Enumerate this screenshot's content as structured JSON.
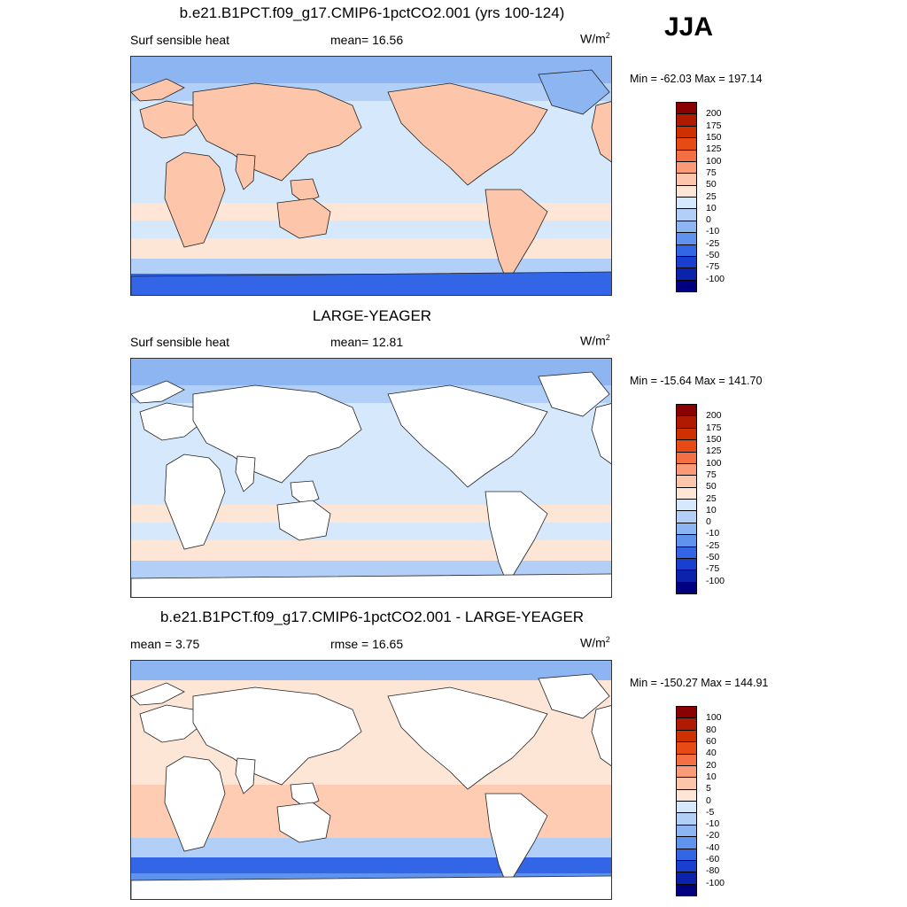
{
  "season": "JJA",
  "panels": [
    {
      "title": "b.e21.B1PCT.f09_g17.CMIP6-1pctCO2.001 (yrs 100-124)",
      "left_label": "Surf sensible heat",
      "mid_label": "mean=  16.56",
      "unit": "W/m",
      "unit_exp": "2",
      "minmax": "Min = -62.03 Max = 197.14",
      "land": "filled",
      "colorbar": {
        "ticks": [
          "200",
          "175",
          "150",
          "125",
          "100",
          "75",
          "50",
          "25",
          "10",
          "0",
          "-10",
          "-25",
          "-50",
          "-75",
          "-100"
        ],
        "colors": [
          "#8a0000",
          "#b01a00",
          "#cf3000",
          "#e74a14",
          "#f46f44",
          "#fa9a76",
          "#fdc6aa",
          "#fde6d6",
          "#d6e8fb",
          "#b2d0f7",
          "#8cb5f2",
          "#5f93ee",
          "#3366e6",
          "#1a3fd0",
          "#0b22ac",
          "#000080"
        ]
      }
    },
    {
      "title": "LARGE-YEAGER",
      "left_label": "Surf sensible heat",
      "mid_label": "mean=  12.81",
      "unit": "W/m",
      "unit_exp": "2",
      "minmax": "Min = -15.64 Max = 141.70",
      "land": "blank",
      "colorbar": {
        "ticks": [
          "200",
          "175",
          "150",
          "125",
          "100",
          "75",
          "50",
          "25",
          "10",
          "0",
          "-10",
          "-25",
          "-50",
          "-75",
          "-100"
        ],
        "colors": [
          "#8a0000",
          "#b01a00",
          "#cf3000",
          "#e74a14",
          "#f46f44",
          "#fa9a76",
          "#fdc6aa",
          "#fde6d6",
          "#d6e8fb",
          "#b2d0f7",
          "#8cb5f2",
          "#5f93ee",
          "#3366e6",
          "#1a3fd0",
          "#0b22ac",
          "#000080"
        ]
      }
    },
    {
      "title": "b.e21.B1PCT.f09_g17.CMIP6-1pctCO2.001 - LARGE-YEAGER",
      "left_label": "mean =   3.75",
      "mid_label": "rmse =  16.65",
      "unit": "W/m",
      "unit_exp": "2",
      "minmax": "Min = -150.27 Max = 144.91",
      "land": "blank",
      "colorbar": {
        "ticks": [
          "100",
          "80",
          "60",
          "40",
          "20",
          "10",
          "5",
          "0",
          "-5",
          "-10",
          "-20",
          "-40",
          "-60",
          "-80",
          "-100"
        ],
        "colors": [
          "#8a0000",
          "#b01a00",
          "#cf3000",
          "#e74a14",
          "#f46f44",
          "#fa9a76",
          "#fdc6aa",
          "#fde6d6",
          "#d6e8fb",
          "#b2d0f7",
          "#8cb5f2",
          "#5f93ee",
          "#3366e6",
          "#1a3fd0",
          "#0b22ac",
          "#000080"
        ]
      }
    }
  ]
}
